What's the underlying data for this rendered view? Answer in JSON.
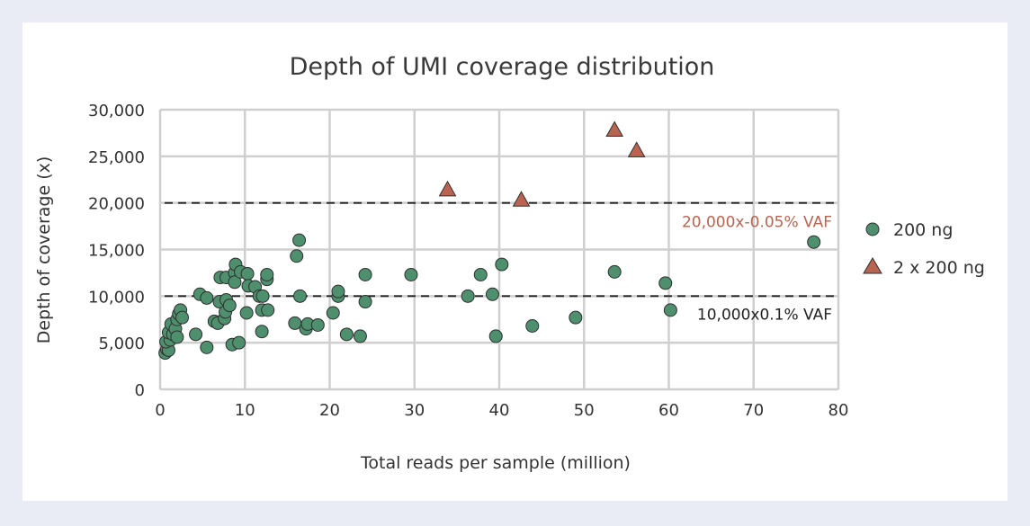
{
  "chart_data": {
    "type": "scatter",
    "title": "Depth of UMI coverage distribution",
    "xlabel": "Total reads per sample (million)",
    "ylabel": "Depth of coverage (x)",
    "xlim": [
      0,
      80
    ],
    "ylim": [
      0,
      30000
    ],
    "x_ticks": [
      "0",
      "10",
      "20",
      "30",
      "40",
      "50",
      "60",
      "70",
      "80"
    ],
    "y_ticks": [
      "0",
      "5,000",
      "10,000",
      "15,000",
      "20,000",
      "25,000",
      "30,000"
    ],
    "grid": true,
    "legend_position": "right",
    "series": [
      {
        "name": "200 ng",
        "marker": "circle",
        "color": "#4e8f6e",
        "points": [
          [
            0.6,
            3900
          ],
          [
            0.8,
            4300
          ],
          [
            1.0,
            4200
          ],
          [
            0.7,
            5100
          ],
          [
            1.2,
            5300
          ],
          [
            1.0,
            6100
          ],
          [
            1.5,
            5900
          ],
          [
            1.3,
            7000
          ],
          [
            1.8,
            6500
          ],
          [
            2.0,
            5600
          ],
          [
            2.0,
            7500
          ],
          [
            2.2,
            8100
          ],
          [
            2.4,
            8500
          ],
          [
            2.6,
            7700
          ],
          [
            4.2,
            5900
          ],
          [
            4.7,
            10200
          ],
          [
            5.5,
            9800
          ],
          [
            5.5,
            4500
          ],
          [
            6.4,
            7300
          ],
          [
            6.8,
            7100
          ],
          [
            7.0,
            9400
          ],
          [
            7.1,
            12000
          ],
          [
            7.6,
            7600
          ],
          [
            7.7,
            8300
          ],
          [
            7.8,
            9600
          ],
          [
            7.8,
            12000
          ],
          [
            8.2,
            9000
          ],
          [
            8.5,
            4800
          ],
          [
            8.8,
            12500
          ],
          [
            8.8,
            11500
          ],
          [
            8.9,
            13400
          ],
          [
            9.3,
            5000
          ],
          [
            9.5,
            12600
          ],
          [
            10.2,
            8200
          ],
          [
            10.3,
            12400
          ],
          [
            10.4,
            11100
          ],
          [
            11.2,
            11000
          ],
          [
            11.7,
            10000
          ],
          [
            12.0,
            8500
          ],
          [
            12.0,
            6200
          ],
          [
            12.1,
            10000
          ],
          [
            12.6,
            11800
          ],
          [
            12.7,
            8500
          ],
          [
            12.6,
            12300
          ],
          [
            15.9,
            7100
          ],
          [
            16.1,
            14300
          ],
          [
            16.4,
            16000
          ],
          [
            16.5,
            10000
          ],
          [
            17.2,
            6500
          ],
          [
            17.4,
            7000
          ],
          [
            18.6,
            6900
          ],
          [
            20.4,
            8200
          ],
          [
            21.0,
            10000
          ],
          [
            21.0,
            10500
          ],
          [
            22.0,
            5900
          ],
          [
            23.6,
            5700
          ],
          [
            24.2,
            9400
          ],
          [
            24.2,
            12300
          ],
          [
            29.6,
            12300
          ],
          [
            36.3,
            10000
          ],
          [
            37.8,
            12300
          ],
          [
            39.2,
            10200
          ],
          [
            39.6,
            5700
          ],
          [
            40.3,
            13400
          ],
          [
            43.9,
            6800
          ],
          [
            49.0,
            7700
          ],
          [
            53.6,
            12600
          ],
          [
            59.6,
            11400
          ],
          [
            60.2,
            8500
          ],
          [
            77.1,
            15800
          ]
        ]
      },
      {
        "name": "2 x 200 ng",
        "marker": "triangle",
        "color": "#b86450",
        "points": [
          [
            33.9,
            21400
          ],
          [
            42.6,
            20300
          ],
          [
            53.6,
            27800
          ],
          [
            56.2,
            25600
          ]
        ]
      }
    ],
    "reference_lines": [
      {
        "y": 20000,
        "label": "20,000x-0.05% VAF",
        "color": "#b86450"
      },
      {
        "y": 10000,
        "label": "10,000x0.1% VAF",
        "color": "#222222"
      }
    ]
  }
}
